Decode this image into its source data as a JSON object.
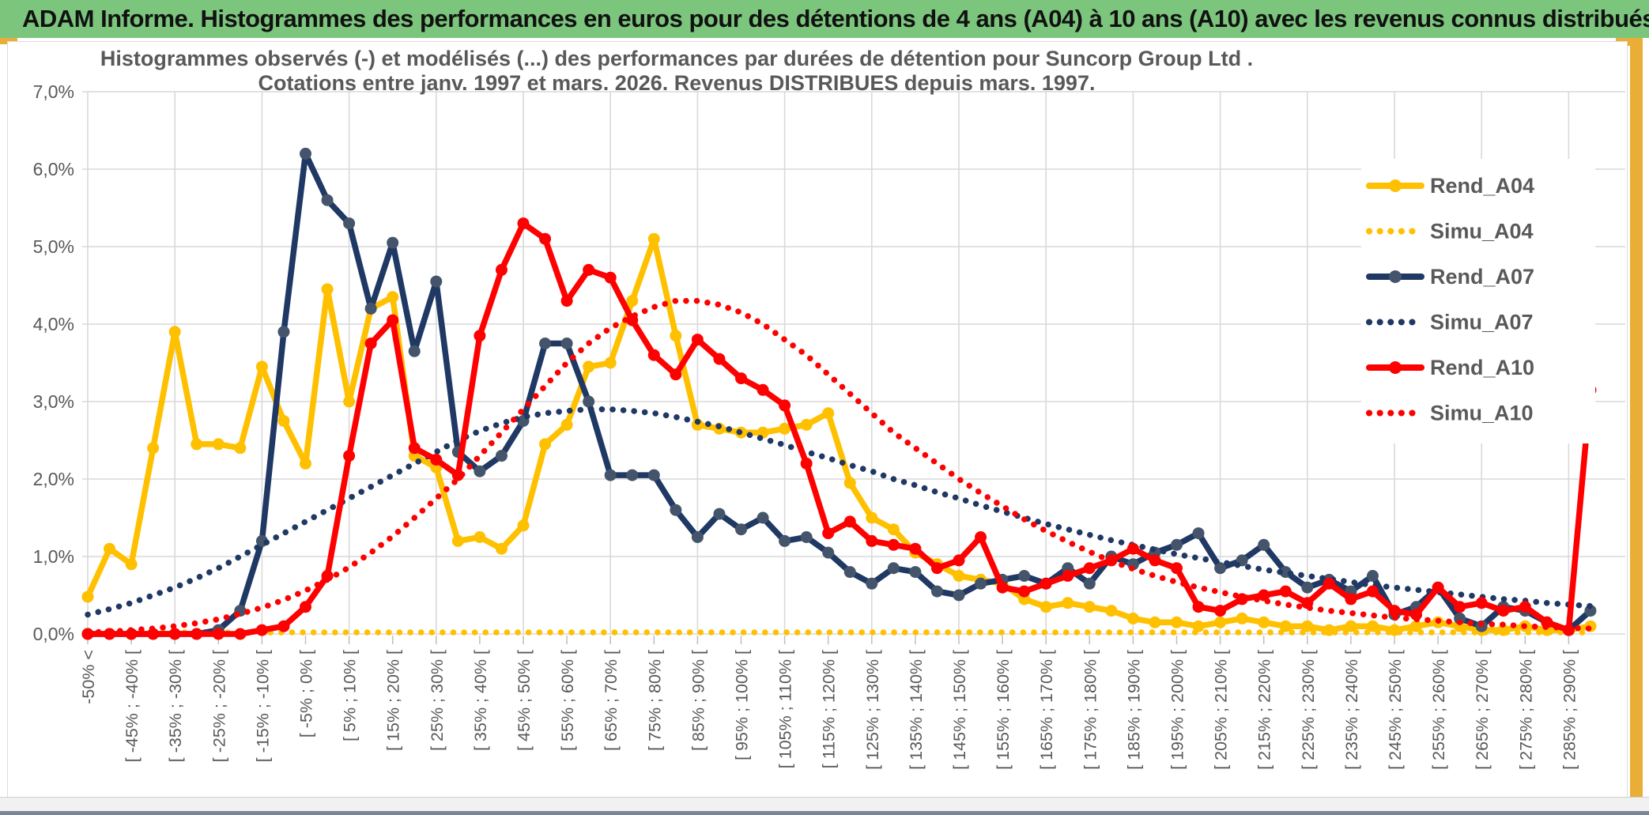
{
  "window": {
    "title": "ADAM Informe. Histogrammes des performances en euros pour des détentions de 4 ans (A04) à 10 ans (A10) avec les revenus connus distribués"
  },
  "colors": {
    "header_green": "#7CC57D",
    "accent_gold": "#E9AE35",
    "gold": "#FFC000",
    "navy": "#1F3864",
    "navy_marker": "#44546A",
    "red": "#FF0000",
    "text_gray": "#595959",
    "gridline": "#D9D9D9",
    "tick": "#BFBFBF",
    "bottom_bar": "#7B8594"
  },
  "chart": {
    "y_axis_labels": [
      "7,0%",
      "6,0%",
      "5,0%",
      "4,0%",
      "3,0%",
      "2,0%",
      "1,0%",
      "0,0%"
    ]
  },
  "chart_data": {
    "type": "line",
    "title": "Histogrammes observés (-) et modélisés (...) des performances par durées de détention pour Suncorp Group Ltd .",
    "subtitle": "Cotations entre janv. 1997 et mars. 2026. Revenus DISTRIBUES depuis mars. 1997.",
    "ylabel": "",
    "xlabel": "",
    "ylim_percent": [
      0.0,
      7.0
    ],
    "grid": true,
    "legend_position": "right-inside",
    "bins_total": 70,
    "x_tick_every_bins": 2,
    "x_tick_labels": [
      "-50% <",
      "[ -45% ; -40% [",
      "[ -35% ; -30% [",
      "[ -25% ; -20% [",
      "[ -15% ; -10% [",
      "[ -5% ; 0% [",
      "[ 5% ; 10% [",
      "[ 15% ; 20% [",
      "[ 25% ; 30% [",
      "[ 35% ; 40% [",
      "[ 45% ; 50% [",
      "[ 55% ; 60% [",
      "[ 65% ; 70% [",
      "[ 75% ; 80% [",
      "[ 85% ; 90% [",
      "[ 95% ; 100% [",
      "[ 105% ; 110% [",
      "[ 115% ; 120% [",
      "[ 125% ; 130% [",
      "[ 135% ; 140% [",
      "[ 145% ; 150% [",
      "[ 155% ; 160% [",
      "[ 165% ; 170% [",
      "[ 175% ; 180% [",
      "[ 185% ; 190% [",
      "[ 195% ; 200% [",
      "[ 205% ; 210% [",
      "[ 215% ; 220% [",
      "[ 225% ; 230% [",
      "[ 235% ; 240% [",
      "[ 245% ; 250% [",
      "[ 255% ; 260% [",
      "[ 265% ; 270% [",
      "[ 275% ; 280% [",
      "[ 285% ; 290% ["
    ],
    "series": [
      {
        "name": "Rend_A04",
        "color": "#FFC000",
        "style": "solid",
        "markers": true,
        "marker_color": "#FFC000",
        "values_percent": [
          0.48,
          1.1,
          0.9,
          2.4,
          3.9,
          2.45,
          2.45,
          2.4,
          3.45,
          2.75,
          2.2,
          4.45,
          3.0,
          4.2,
          4.35,
          2.3,
          2.15,
          1.2,
          1.25,
          1.1,
          1.4,
          2.45,
          2.7,
          3.45,
          3.5,
          4.3,
          5.1,
          3.85,
          2.7,
          2.65,
          2.6,
          2.6,
          2.65,
          2.7,
          2.85,
          1.95,
          1.5,
          1.35,
          1.05,
          0.9,
          0.75,
          0.7,
          0.65,
          0.45,
          0.35,
          0.4,
          0.35,
          0.3,
          0.2,
          0.15,
          0.15,
          0.1,
          0.15,
          0.2,
          0.15,
          0.1,
          0.1,
          0.05,
          0.1,
          0.1,
          0.05,
          0.1,
          0.15,
          0.1,
          0.05,
          0.05,
          0.1,
          0.05,
          0.05,
          0.1
        ]
      },
      {
        "name": "Simu_A04",
        "color": "#FFC000",
        "style": "dotted",
        "markers": false,
        "values_percent": [
          0.02,
          0.02,
          0.02,
          0.02,
          0.02,
          0.02,
          0.02,
          0.02,
          0.02,
          0.02,
          0.02,
          0.02,
          0.02,
          0.02,
          0.02,
          0.02,
          0.02,
          0.02,
          0.02,
          0.02,
          0.02,
          0.02,
          0.02,
          0.02,
          0.02,
          0.02,
          0.02,
          0.02,
          0.02,
          0.02,
          0.02,
          0.02,
          0.02,
          0.02,
          0.02,
          0.02,
          0.02,
          0.02,
          0.02,
          0.02,
          0.02,
          0.02,
          0.02,
          0.02,
          0.02,
          0.02,
          0.02,
          0.02,
          0.02,
          0.02,
          0.02,
          0.02,
          0.02,
          0.02,
          0.02,
          0.02,
          0.02,
          0.02,
          0.02,
          0.02,
          0.02,
          0.02,
          0.02,
          0.02,
          0.02,
          0.02,
          0.02,
          0.02,
          0.02,
          0.02
        ]
      },
      {
        "name": "Rend_A07",
        "color": "#1F3864",
        "style": "solid",
        "markers": true,
        "marker_color": "#44546A",
        "values_percent": [
          0,
          0,
          0,
          0,
          0,
          0,
          0.05,
          0.3,
          1.2,
          3.9,
          6.2,
          5.6,
          5.3,
          4.2,
          5.05,
          3.65,
          4.55,
          2.35,
          2.1,
          2.3,
          2.75,
          3.75,
          3.75,
          3.0,
          2.05,
          2.05,
          2.05,
          1.6,
          1.25,
          1.55,
          1.35,
          1.5,
          1.2,
          1.25,
          1.05,
          0.8,
          0.65,
          0.85,
          0.8,
          0.55,
          0.5,
          0.65,
          0.7,
          0.75,
          0.65,
          0.85,
          0.65,
          1.0,
          0.9,
          1.05,
          1.15,
          1.3,
          0.85,
          0.95,
          1.15,
          0.8,
          0.6,
          0.7,
          0.55,
          0.75,
          0.25,
          0.35,
          0.6,
          0.2,
          0.1,
          0.35,
          0.3,
          0.15,
          0.05,
          0.3
        ]
      },
      {
        "name": "Simu_A07",
        "color": "#1F3864",
        "style": "dotted",
        "markers": false,
        "values_percent": [
          0.25,
          0.32,
          0.4,
          0.5,
          0.6,
          0.72,
          0.85,
          1.0,
          1.15,
          1.3,
          1.45,
          1.6,
          1.75,
          1.9,
          2.05,
          2.2,
          2.35,
          2.5,
          2.62,
          2.72,
          2.8,
          2.85,
          2.88,
          2.9,
          2.9,
          2.88,
          2.85,
          2.8,
          2.74,
          2.68,
          2.6,
          2.52,
          2.44,
          2.35,
          2.27,
          2.18,
          2.1,
          2.0,
          1.92,
          1.83,
          1.75,
          1.66,
          1.58,
          1.5,
          1.42,
          1.35,
          1.28,
          1.21,
          1.15,
          1.09,
          1.03,
          0.98,
          0.93,
          0.88,
          0.83,
          0.79,
          0.75,
          0.71,
          0.67,
          0.63,
          0.6,
          0.57,
          0.54,
          0.51,
          0.48,
          0.45,
          0.43,
          0.4,
          0.38,
          0.36
        ]
      },
      {
        "name": "Rend_A10",
        "color": "#FF0000",
        "style": "solid",
        "markers": true,
        "marker_color": "#FF0000",
        "values_percent": [
          0,
          0,
          0,
          0,
          0,
          0,
          0,
          0,
          0.05,
          0.1,
          0.35,
          0.75,
          2.3,
          3.75,
          4.05,
          2.4,
          2.25,
          2.05,
          3.85,
          4.7,
          5.3,
          5.1,
          4.3,
          4.7,
          4.6,
          4.05,
          3.6,
          3.35,
          3.8,
          3.55,
          3.3,
          3.15,
          2.95,
          2.2,
          1.3,
          1.45,
          1.2,
          1.15,
          1.1,
          0.85,
          0.95,
          1.25,
          0.6,
          0.55,
          0.65,
          0.75,
          0.85,
          0.95,
          1.1,
          0.95,
          0.85,
          0.35,
          0.3,
          0.45,
          0.5,
          0.55,
          0.4,
          0.65,
          0.45,
          0.55,
          0.3,
          0.25,
          0.6,
          0.35,
          0.4,
          0.3,
          0.35,
          0.15,
          0.05,
          3.15
        ]
      },
      {
        "name": "Simu_A10",
        "color": "#FF0000",
        "style": "dotted",
        "markers": false,
        "values_percent": [
          0.02,
          0.03,
          0.05,
          0.07,
          0.1,
          0.14,
          0.19,
          0.26,
          0.34,
          0.44,
          0.56,
          0.7,
          0.86,
          1.05,
          1.26,
          1.5,
          1.75,
          2.0,
          2.3,
          2.6,
          2.9,
          3.2,
          3.5,
          3.75,
          3.95,
          4.1,
          4.22,
          4.3,
          4.3,
          4.25,
          4.15,
          4.0,
          3.8,
          3.6,
          3.35,
          3.1,
          2.85,
          2.6,
          2.4,
          2.2,
          2.0,
          1.82,
          1.65,
          1.48,
          1.33,
          1.19,
          1.06,
          0.94,
          0.84,
          0.75,
          0.67,
          0.6,
          0.54,
          0.48,
          0.43,
          0.38,
          0.34,
          0.3,
          0.27,
          0.24,
          0.21,
          0.19,
          0.17,
          0.15,
          0.13,
          0.12,
          0.1,
          0.09,
          0.08,
          0.07
        ]
      }
    ]
  }
}
